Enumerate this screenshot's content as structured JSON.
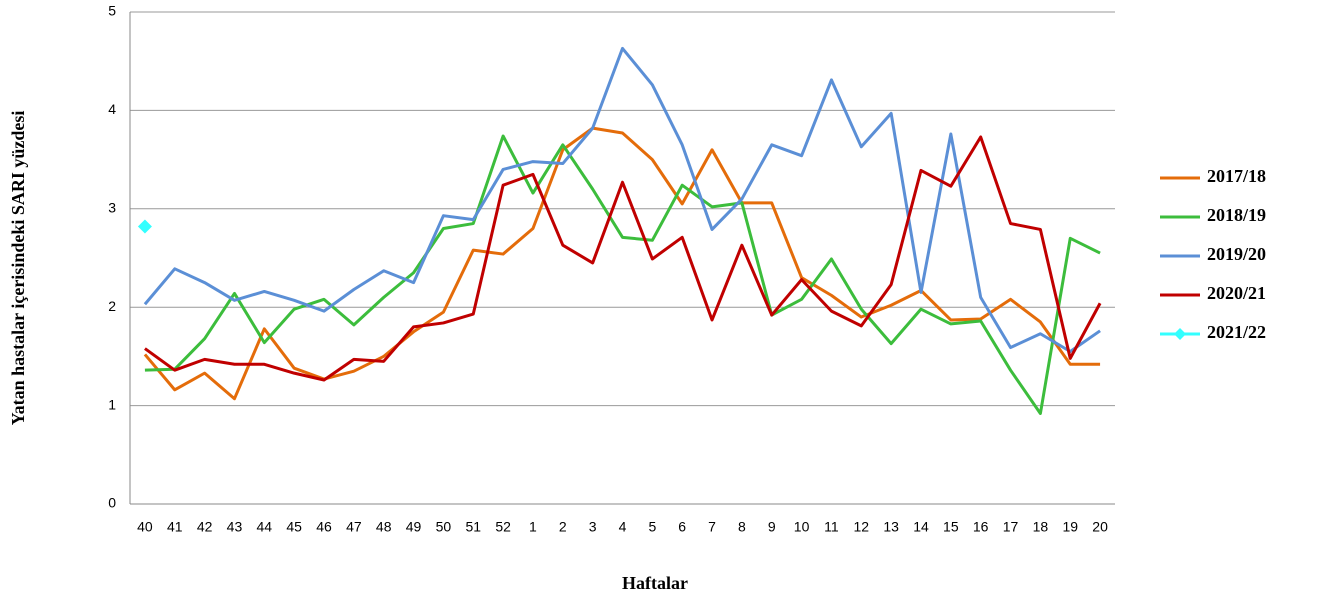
{
  "chart_data": {
    "type": "line",
    "x_label": "Haftalar",
    "y_label": "Yatan  hastalar içerisindeki  SARI yüzdesi",
    "categories": [
      "40",
      "41",
      "42",
      "43",
      "44",
      "45",
      "46",
      "47",
      "48",
      "49",
      "50",
      "51",
      "52",
      "1",
      "2",
      "3",
      "4",
      "5",
      "6",
      "7",
      "8",
      "9",
      "10",
      "11",
      "12",
      "13",
      "14",
      "15",
      "16",
      "17",
      "18",
      "19",
      "20"
    ],
    "series": [
      {
        "name": "2017/18",
        "color": "#e46c0a",
        "values": [
          1.52,
          1.16,
          1.33,
          1.07,
          1.78,
          1.38,
          1.27,
          1.35,
          1.5,
          1.75,
          1.95,
          2.58,
          2.54,
          2.8,
          3.6,
          3.82,
          3.77,
          3.5,
          3.05,
          3.6,
          3.06,
          3.06,
          2.3,
          2.12,
          1.9,
          2.02,
          2.17,
          1.87,
          1.88,
          2.08,
          1.85,
          1.42,
          1.42
        ]
      },
      {
        "name": "2018/19",
        "color": "#3cbd3c",
        "values": [
          1.36,
          1.37,
          1.68,
          2.14,
          1.64,
          1.98,
          2.08,
          1.82,
          2.1,
          2.35,
          2.8,
          2.85,
          3.74,
          3.16,
          3.65,
          3.2,
          2.71,
          2.68,
          3.24,
          3.02,
          3.06,
          1.92,
          2.08,
          2.49,
          1.98,
          1.63,
          1.98,
          1.83,
          1.86,
          1.36,
          0.92,
          2.7,
          2.55
        ]
      },
      {
        "name": "2019/20",
        "color": "#5b8fd6",
        "values": [
          2.03,
          2.39,
          2.25,
          2.07,
          2.16,
          2.07,
          1.96,
          2.18,
          2.37,
          2.25,
          2.93,
          2.89,
          3.4,
          3.48,
          3.46,
          3.82,
          4.63,
          4.26,
          3.65,
          2.79,
          3.1,
          3.65,
          3.54,
          4.31,
          3.63,
          3.97,
          2.15,
          3.76,
          2.1,
          1.59,
          1.73,
          1.55,
          1.76
        ]
      },
      {
        "name": "2020/21",
        "color": "#c00000",
        "values": [
          1.58,
          1.36,
          1.47,
          1.42,
          1.42,
          1.33,
          1.26,
          1.47,
          1.45,
          1.8,
          1.84,
          1.93,
          3.24,
          3.35,
          2.63,
          2.45,
          3.27,
          2.49,
          2.71,
          1.87,
          2.63,
          1.92,
          2.28,
          1.96,
          1.81,
          2.23,
          3.39,
          3.23,
          3.73,
          2.85,
          2.79,
          1.48,
          2.04
        ]
      },
      {
        "name": "2021/22",
        "color": "#33ffff",
        "marker": "diamond",
        "values": [
          2.82,
          null,
          null,
          null,
          null,
          null,
          null,
          null,
          null,
          null,
          null,
          null,
          null,
          null,
          null,
          null,
          null,
          null,
          null,
          null,
          null,
          null,
          null,
          null,
          null,
          null,
          null,
          null,
          null,
          null,
          null,
          null,
          null
        ]
      }
    ],
    "ylim": [
      0,
      5
    ],
    "yticks": [
      0,
      1,
      2,
      3,
      4,
      5
    ],
    "grid": true,
    "legend": "right"
  }
}
